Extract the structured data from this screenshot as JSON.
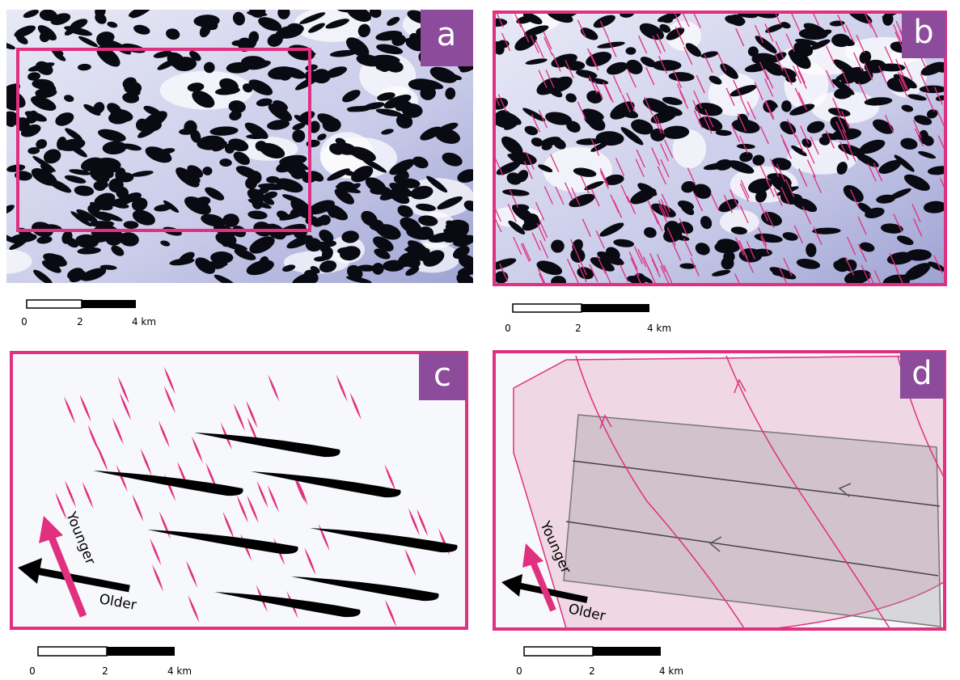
{
  "panels": [
    {
      "label": "a",
      "scale_bar": {
        "labels": [
          "0",
          "2",
          "4 km"
        ]
      }
    },
    {
      "label": "b",
      "scale_bar": {
        "labels": [
          "0",
          "2",
          "4 km"
        ]
      }
    },
    {
      "label": "c",
      "scale_bar": {
        "labels": [
          "0",
          "2",
          "4 km"
        ]
      },
      "arrows": {
        "younger": "Younger",
        "older": "Older"
      }
    },
    {
      "label": "d",
      "scale_bar": {
        "labels": [
          "0",
          "2",
          "4 km"
        ]
      },
      "arrows": {
        "younger": "Younger",
        "older": "Older"
      }
    }
  ]
}
